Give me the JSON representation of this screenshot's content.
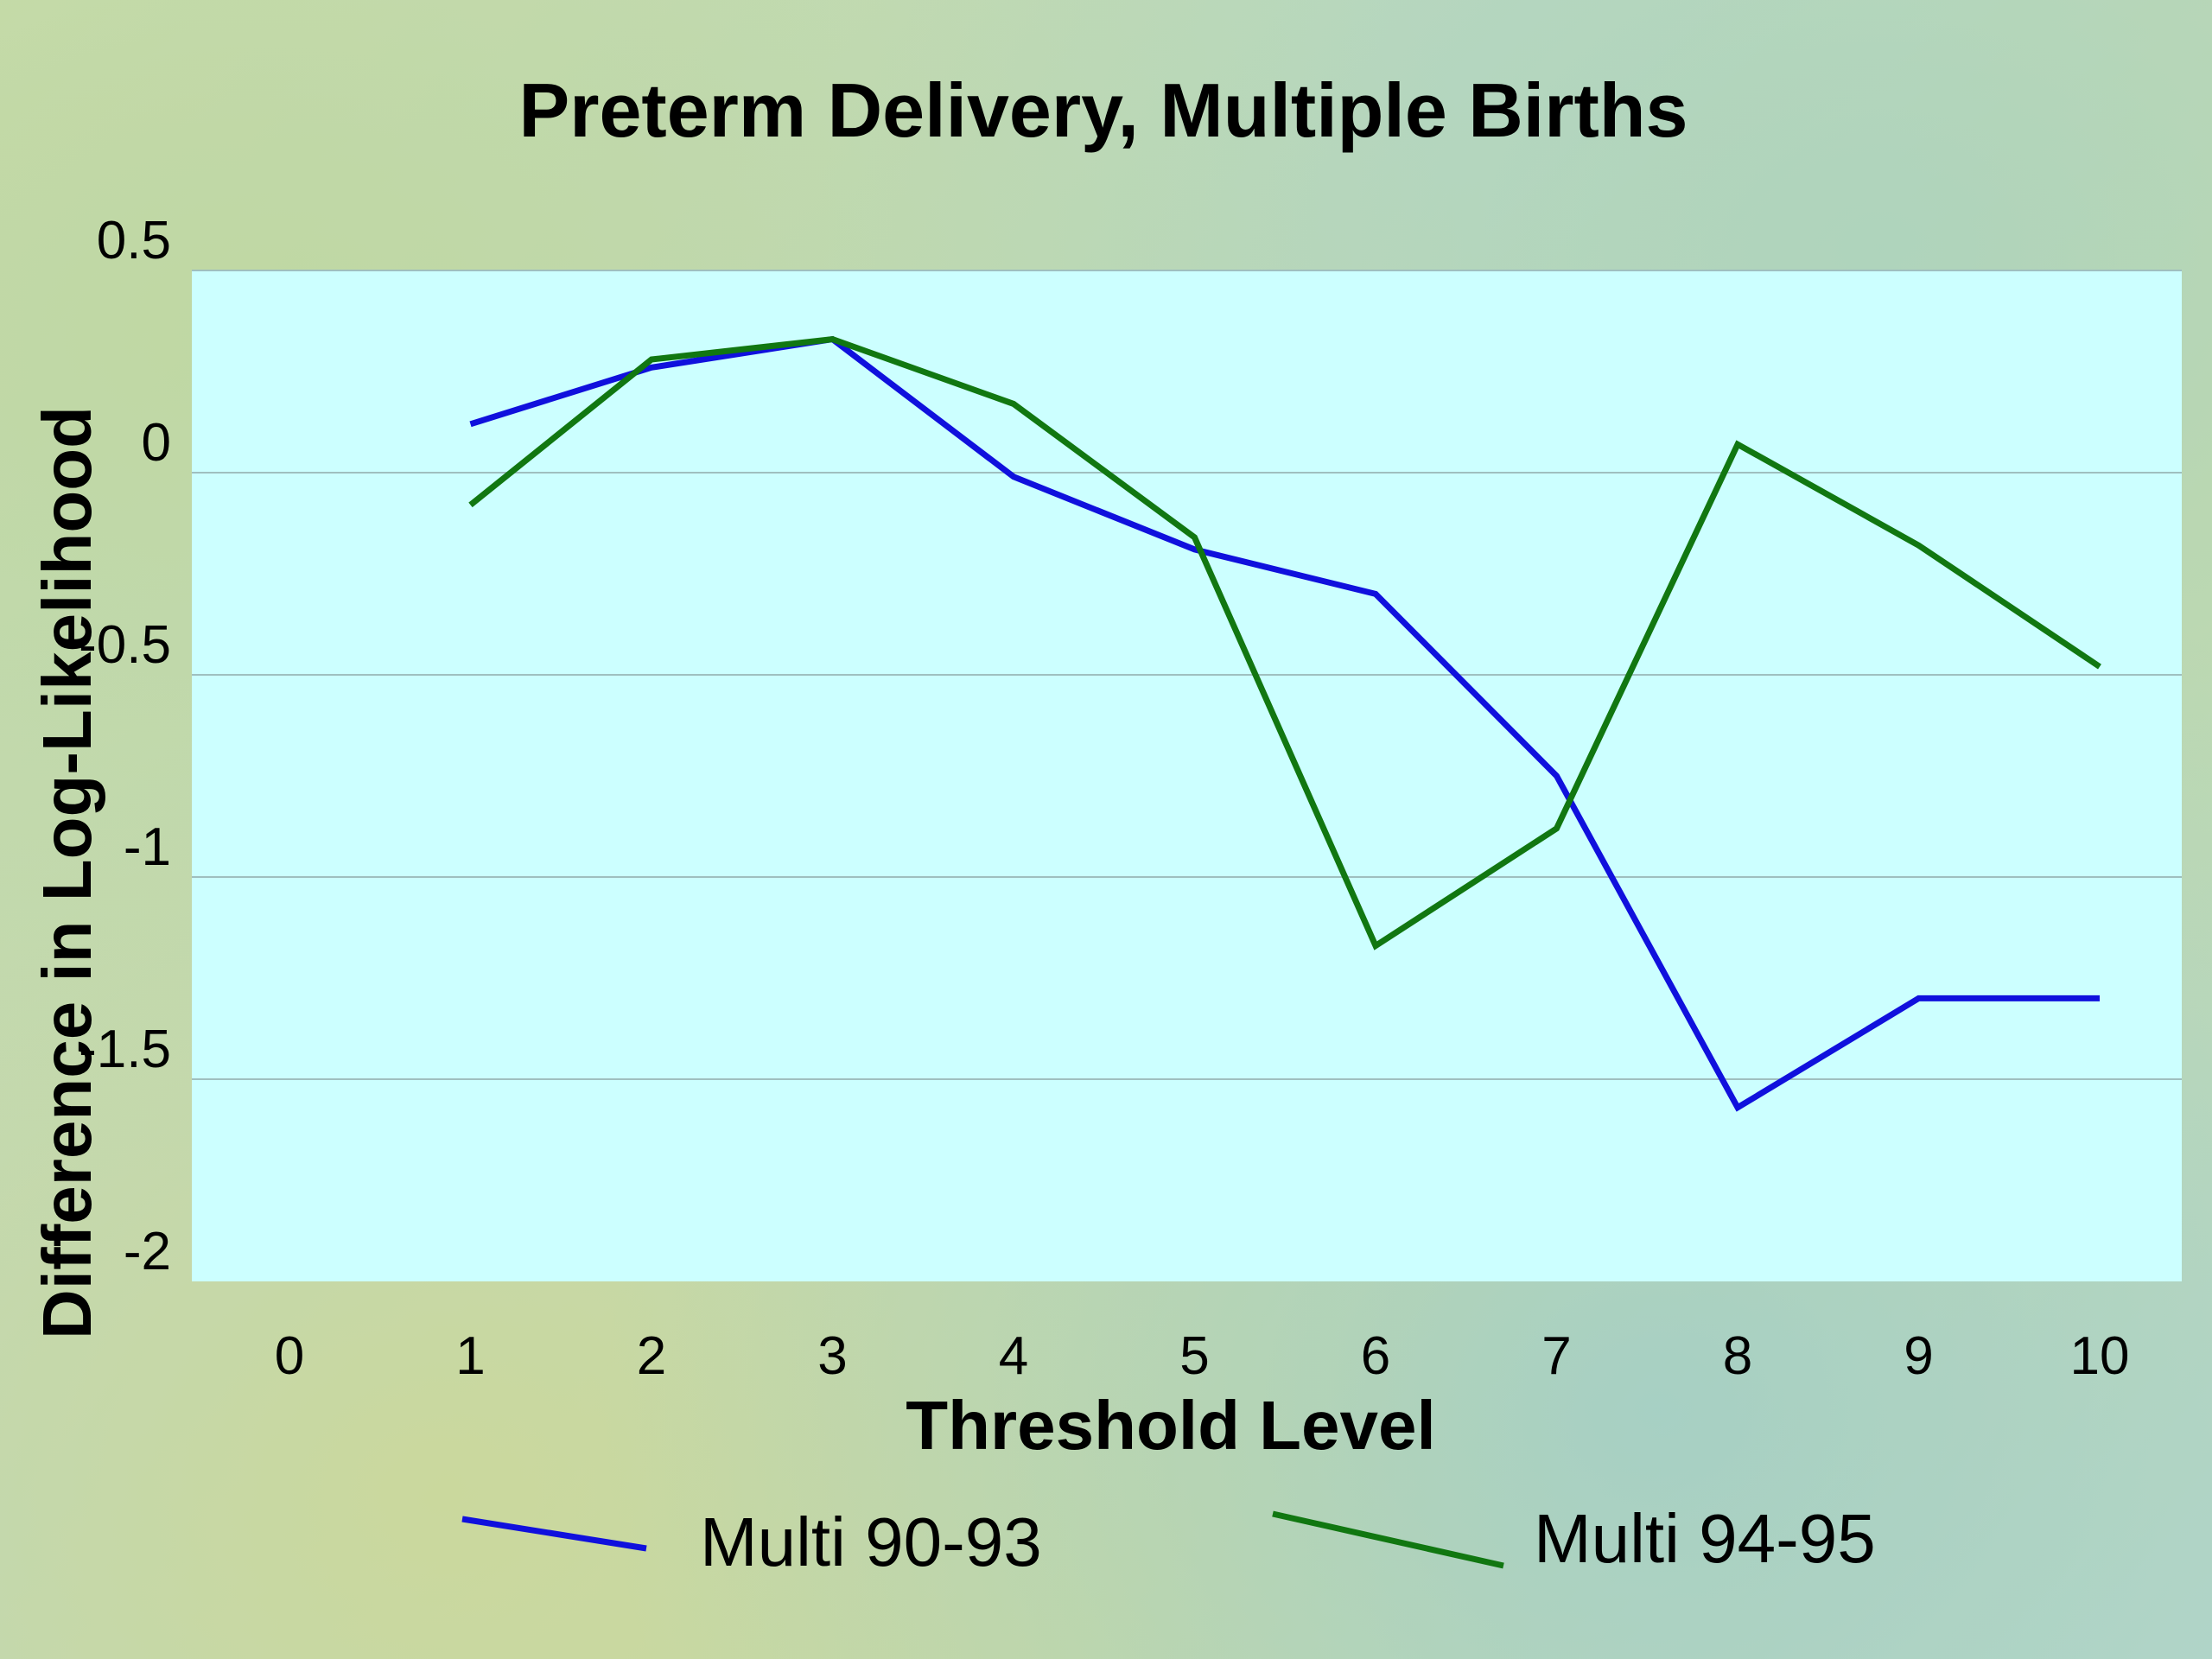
{
  "chart_data": {
    "type": "line",
    "title": "Preterm Delivery, Multiple Births",
    "xlabel": "Threshold Level",
    "ylabel": "Difference in Log-Likelihood",
    "x_ticks": [
      0,
      1,
      2,
      3,
      4,
      5,
      6,
      7,
      8,
      9,
      10
    ],
    "y_ticks": [
      "0.5",
      "0",
      "-0.5",
      "-1",
      "-1.5",
      "-2"
    ],
    "xlim": [
      0,
      10
    ],
    "ylim": [
      -2,
      0.5
    ],
    "grid": "horizontal",
    "legend_position": "bottom",
    "series": [
      {
        "name": "Multi 90-93",
        "color": "#1010dd",
        "x": [
          1,
          2,
          3,
          4,
          5,
          6,
          7,
          8,
          9,
          10
        ],
        "y": [
          0.12,
          0.26,
          0.33,
          -0.01,
          -0.19,
          -0.3,
          -0.75,
          -1.57,
          -1.3,
          -1.3
        ]
      },
      {
        "name": "Multi 94-95",
        "color": "#117711",
        "x": [
          1,
          2,
          3,
          4,
          5,
          6,
          7,
          8,
          9,
          10
        ],
        "y": [
          -0.08,
          0.28,
          0.33,
          0.17,
          -0.16,
          -1.17,
          -0.88,
          0.07,
          -0.18,
          -0.48
        ]
      }
    ]
  }
}
